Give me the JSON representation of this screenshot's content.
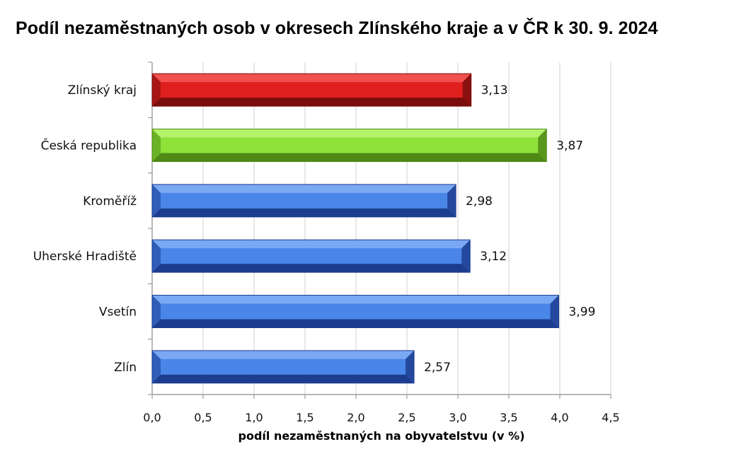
{
  "chart_data": {
    "type": "bar",
    "orientation": "horizontal",
    "title": "Podíl nezaměstnaných osob v okresech Zlínského kraje a v ČR k 30. 9. 2024",
    "xlabel": "podíl nezaměstnaných na obyvatelstvu (v %)",
    "ylabel": "",
    "categories": [
      "Zlínský kraj",
      "Česká republika",
      "Kroměříž",
      "Uherské Hradiště",
      "Vsetín",
      "Zlín"
    ],
    "values": [
      3.13,
      3.87,
      2.98,
      3.12,
      3.99,
      2.57
    ],
    "value_labels": [
      "3,13",
      "3,87",
      "2,98",
      "3,12",
      "3,99",
      "2,57"
    ],
    "xlim": [
      0,
      4.5
    ],
    "ticks": [
      "0,0",
      "0,5",
      "1,0",
      "1,5",
      "2,0",
      "2,5",
      "3,0",
      "3,5",
      "4,0",
      "4,5"
    ],
    "grid": "vertical",
    "legend": "none",
    "bar_colors": [
      "#e0201f",
      "#8ee23a",
      "#4a86e8",
      "#4a86e8",
      "#4a86e8",
      "#4a86e8"
    ],
    "bar_dark_colors": [
      "#7a0d0d",
      "#4f8a16",
      "#1c3d8f",
      "#1c3d8f",
      "#1c3d8f",
      "#1c3d8f"
    ],
    "bar_light_colors": [
      "#f0504f",
      "#b4f26a",
      "#7aa8f2",
      "#7aa8f2",
      "#7aa8f2",
      "#7aa8f2"
    ]
  }
}
